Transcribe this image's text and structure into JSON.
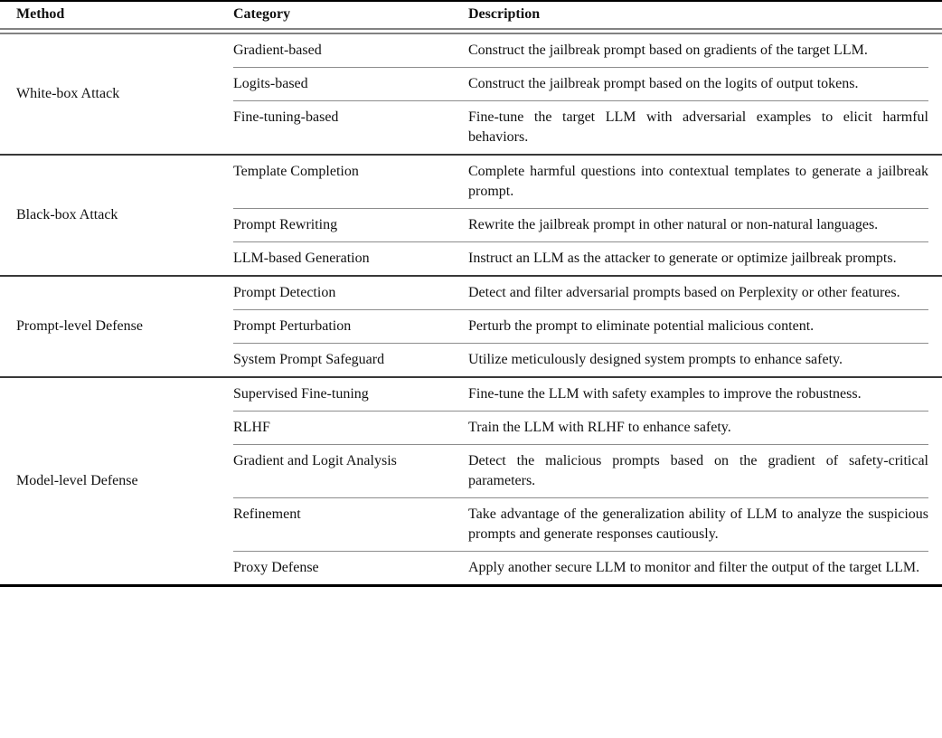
{
  "table": {
    "headers": {
      "method": "Method",
      "category": "Category",
      "description": "Description"
    },
    "sections": [
      {
        "method": "White-box Attack",
        "rows": [
          {
            "category": "Gradient-based",
            "description": "Construct the jailbreak prompt based on gradients of the target LLM."
          },
          {
            "category": "Logits-based",
            "description": "Construct the jailbreak prompt based on the logits of output tokens."
          },
          {
            "category": "Fine-tuning-based",
            "description": "Fine-tune the target LLM with adversarial examples to elicit harmful behaviors."
          }
        ]
      },
      {
        "method": "Black-box Attack",
        "rows": [
          {
            "category": "Template Completion",
            "description": "Complete harmful questions into contextual templates to generate a jailbreak prompt."
          },
          {
            "category": "Prompt Rewriting",
            "description": "Rewrite the jailbreak prompt in other natural or non-natural languages."
          },
          {
            "category": "LLM-based Generation",
            "description": "Instruct an LLM as the attacker to generate or optimize jailbreak prompts."
          }
        ]
      },
      {
        "method": "Prompt-level Defense",
        "rows": [
          {
            "category": "Prompt Detection",
            "description": "Detect and filter adversarial prompts based on Perplexity or other features."
          },
          {
            "category": "Prompt Perturbation",
            "description": "Perturb the prompt to eliminate potential malicious content."
          },
          {
            "category": "System Prompt Safeguard",
            "description": "Utilize meticulously designed system prompts to enhance safety."
          }
        ]
      },
      {
        "method": "Model-level Defense",
        "rows": [
          {
            "category": "Supervised Fine-tuning",
            "description": "Fine-tune the LLM with safety examples to improve the robustness."
          },
          {
            "category": "RLHF",
            "description": "Train the LLM with RLHF to enhance safety."
          },
          {
            "category": "Gradient and Logit Analysis",
            "description": "Detect the malicious prompts based on the gradient of safety-critical parameters."
          },
          {
            "category": "Refinement",
            "description": "Take advantage of the generalization ability of LLM to analyze the suspicious prompts and generate responses cautiously."
          },
          {
            "category": "Proxy Defense",
            "description": "Apply another secure LLM to monitor and filter the output of the target LLM."
          }
        ]
      }
    ]
  },
  "colors": {
    "text": "#111111",
    "thick_rule": "#000000",
    "double_rule": "#828282",
    "section_rule": "#383838",
    "inner_rule": "#8d8d8d",
    "background": "#ffffff"
  }
}
